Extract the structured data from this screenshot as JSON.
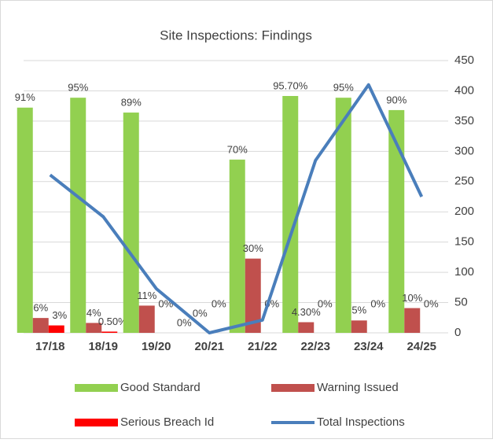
{
  "chart_data": {
    "type": "bar",
    "title": "Site Inspections: Findings",
    "categories": [
      "17/18",
      "18/19",
      "19/20",
      "20/21",
      "21/22",
      "22/23",
      "23/24",
      "24/25"
    ],
    "ylim": [
      0,
      110
    ],
    "y2lim": [
      0,
      450
    ],
    "y2ticks": [
      0,
      50,
      100,
      150,
      200,
      250,
      300,
      350,
      400,
      450
    ],
    "grid": true,
    "legend": "bottom",
    "series": [
      {
        "name": "Good Standard",
        "type": "bar",
        "color": "#92d050",
        "values": [
          91,
          95,
          89,
          0,
          70,
          95.7,
          95,
          90
        ],
        "value_labels": [
          "91%",
          "95%",
          "89%",
          "0%",
          "70%",
          "95.70%",
          "95%",
          "90%"
        ]
      },
      {
        "name": "Warning Issued",
        "type": "bar",
        "color": "#c0504d",
        "values": [
          6,
          4,
          11,
          0,
          30,
          4.3,
          5,
          10
        ],
        "value_labels": [
          "6%",
          "4%",
          "11%",
          "0%",
          "30%",
          "4.30%",
          "5%",
          "10%"
        ]
      },
      {
        "name": "Serious Breach Id",
        "type": "bar",
        "color": "#ff0000",
        "values": [
          3,
          0.5,
          0,
          0,
          0,
          0,
          0,
          0
        ],
        "value_labels": [
          "3%",
          "0.50%",
          "0%",
          "0%",
          "0%",
          "0%",
          "0%",
          "0%"
        ]
      },
      {
        "name": "Total Inspections",
        "type": "line",
        "axis": "y2",
        "color": "#4a7ebb",
        "values": [
          261,
          192,
          73,
          0,
          21,
          285,
          410,
          225
        ]
      }
    ]
  }
}
